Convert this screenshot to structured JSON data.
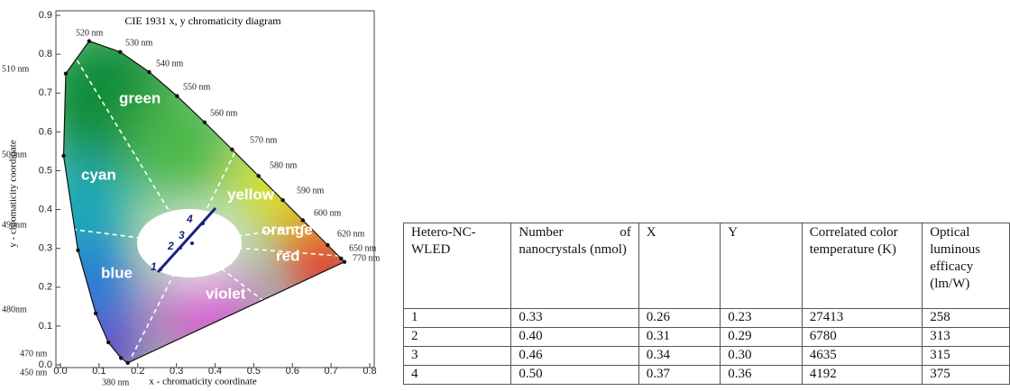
{
  "figure": {
    "title": "CIE 1931 x, y chromaticity diagram",
    "x_label": "x - chromaticity coordinate",
    "y_label": "y - chromaticity coordinate",
    "x_ticks": [
      "0.0",
      "0.1",
      "0.2",
      "0.3",
      "0.4",
      "0.5",
      "0.6",
      "0.7",
      "0.8"
    ],
    "y_ticks": [
      "0.0",
      "0.1",
      "0.2",
      "0.3",
      "0.4",
      "0.5",
      "0.6",
      "0.7",
      "0.8",
      "0.9"
    ],
    "wavelength_labels": [
      "520 nm",
      "530 nm",
      "540 nm",
      "550 nm",
      "560 nm",
      "570 nm",
      "580 nm",
      "590 nm",
      "600 nm",
      "620 nm",
      "650 nm",
      "770 nm",
      "510 nm",
      "500nm",
      "490nm",
      "480nm",
      "470 nm",
      "450 nm",
      "380 nm"
    ],
    "region_labels": [
      "green",
      "cyan",
      "yellow",
      "orange",
      "red",
      "blue",
      "violet"
    ],
    "point_labels": [
      "1",
      "2",
      "3",
      "4"
    ]
  },
  "table": {
    "header": [
      "Hetero-NC-WLED",
      "Number of nanocrystals (nmol)",
      "X",
      "Y",
      "Correlated color temperature (K)",
      "Optical luminous efficacy (lm/W)"
    ],
    "rows": [
      [
        "1",
        "0.33",
        "0.26",
        "0.23",
        "27413",
        "258"
      ],
      [
        "2",
        "0.40",
        "0.31",
        "0.29",
        "6780",
        "313"
      ],
      [
        "3",
        "0.46",
        "0.34",
        "0.30",
        "4635",
        "315"
      ],
      [
        "4",
        "0.50",
        "0.37",
        "0.36",
        "4192",
        "375"
      ]
    ]
  }
}
